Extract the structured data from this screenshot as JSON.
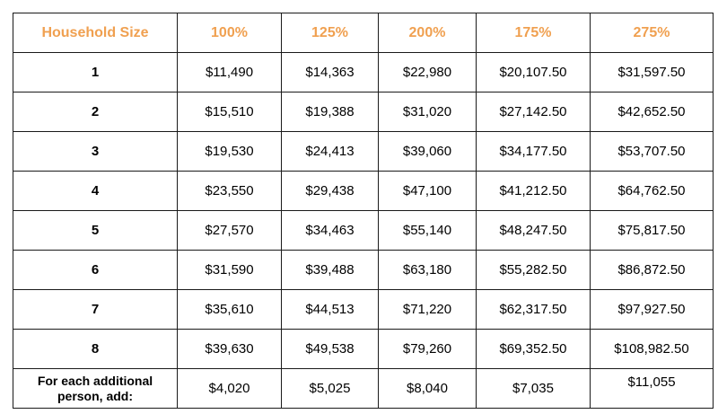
{
  "table": {
    "headers": [
      "Household Size",
      "100%",
      "125%",
      "200%",
      "175%",
      "275%"
    ],
    "rows": [
      [
        "1",
        "$11,490",
        "$14,363",
        "$22,980",
        "$20,107.50",
        "$31,597.50"
      ],
      [
        "2",
        "$15,510",
        "$19,388",
        "$31,020",
        "$27,142.50",
        "$42,652.50"
      ],
      [
        "3",
        "$19,530",
        "$24,413",
        "$39,060",
        "$34,177.50",
        "$53,707.50"
      ],
      [
        "4",
        "$23,550",
        "$29,438",
        "$47,100",
        "$41,212.50",
        "$64,762.50"
      ],
      [
        "5",
        "$27,570",
        "$34,463",
        "$55,140",
        "$48,247.50",
        "$75,817.50"
      ],
      [
        "6",
        "$31,590",
        "$39,488",
        "$63,180",
        "$55,282.50",
        "$86,872.50"
      ],
      [
        "7",
        "$35,610",
        "$44,513",
        "$71,220",
        "$62,317.50",
        "$97,927.50"
      ],
      [
        "8",
        "$39,630",
        "$49,538",
        "$79,260",
        "$69,352.50",
        "$108,982.50"
      ]
    ],
    "additional": {
      "label_line1": "For each additional",
      "label_line2": "person, add:",
      "values": [
        "$4,020",
        "$5,025",
        "$8,040",
        "$7,035",
        "$11,055"
      ]
    }
  },
  "colors": {
    "header_text": "#f0a050",
    "border": "#1a1a1a",
    "text": "#000000"
  }
}
